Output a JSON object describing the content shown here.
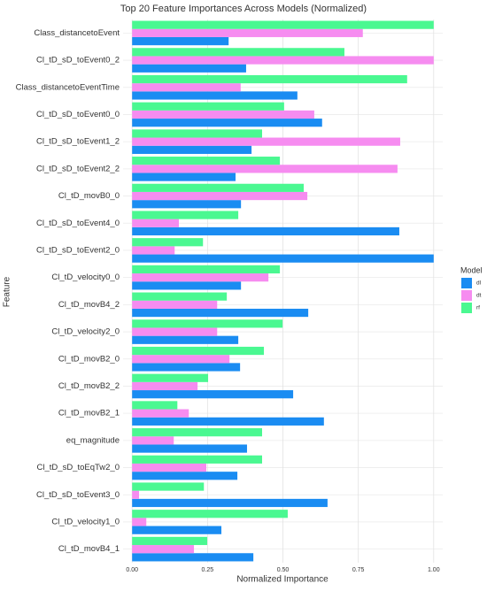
{
  "chart_data": {
    "type": "bar",
    "orientation": "horizontal",
    "title": "Top 20 Feature Importances Across Models (Normalized)",
    "x_label": "Normalized Importance",
    "y_label": "Feature",
    "legend_title": "Model",
    "legend_position": "right",
    "grid": true,
    "categories": [
      "Class_distancetoEvent",
      "Cl_tD_sD_toEvent0_2",
      "Class_distancetoEventTime",
      "Cl_tD_sD_toEvent0_0",
      "Cl_tD_sD_toEvent1_2",
      "Cl_tD_sD_toEvent2_2",
      "Cl_tD_movB0_0",
      "Cl_tD_sD_toEvent4_0",
      "Cl_tD_sD_toEvent2_0",
      "Cl_tD_velocity0_0",
      "Cl_tD_movB4_2",
      "Cl_tD_velocity2_0",
      "Cl_tD_movB2_0",
      "Cl_tD_movB2_2",
      "Cl_tD_movB2_1",
      "eq_magnitude",
      "Cl_tD_sD_toEqTw2_0",
      "Cl_tD_sD_toEvent3_0",
      "Cl_tD_velocity1_0",
      "Cl_tD_movB4_1"
    ],
    "series": [
      {
        "name": "dl",
        "color": "#1a8cf2",
        "values": [
          0.32,
          0.378,
          0.548,
          0.63,
          0.396,
          0.343,
          0.361,
          0.886,
          1.0,
          0.361,
          0.584,
          0.352,
          0.358,
          0.534,
          0.636,
          0.381,
          0.349,
          0.648,
          0.296,
          0.402
        ]
      },
      {
        "name": "dt",
        "color": "#f68cf0",
        "values": [
          0.765,
          1.0,
          0.36,
          0.604,
          0.889,
          0.88,
          0.581,
          0.155,
          0.141,
          0.452,
          0.282,
          0.282,
          0.323,
          0.217,
          0.188,
          0.138,
          0.246,
          0.023,
          0.047,
          0.205
        ]
      },
      {
        "name": "rf",
        "color": "#4af891",
        "values": [
          1.0,
          0.704,
          0.912,
          0.504,
          0.431,
          0.49,
          0.569,
          0.352,
          0.235,
          0.49,
          0.314,
          0.499,
          0.437,
          0.252,
          0.15,
          0.431,
          0.431,
          0.238,
          0.516,
          0.249
        ]
      }
    ],
    "xlim": [
      -0.03,
      1.03
    ],
    "xticks": [
      {
        "value": 0,
        "label": "0.00"
      },
      0.25,
      {
        "value": 0.5,
        "label": "0.50"
      },
      0.75,
      {
        "value": 1,
        "label": "1.00"
      }
    ]
  }
}
